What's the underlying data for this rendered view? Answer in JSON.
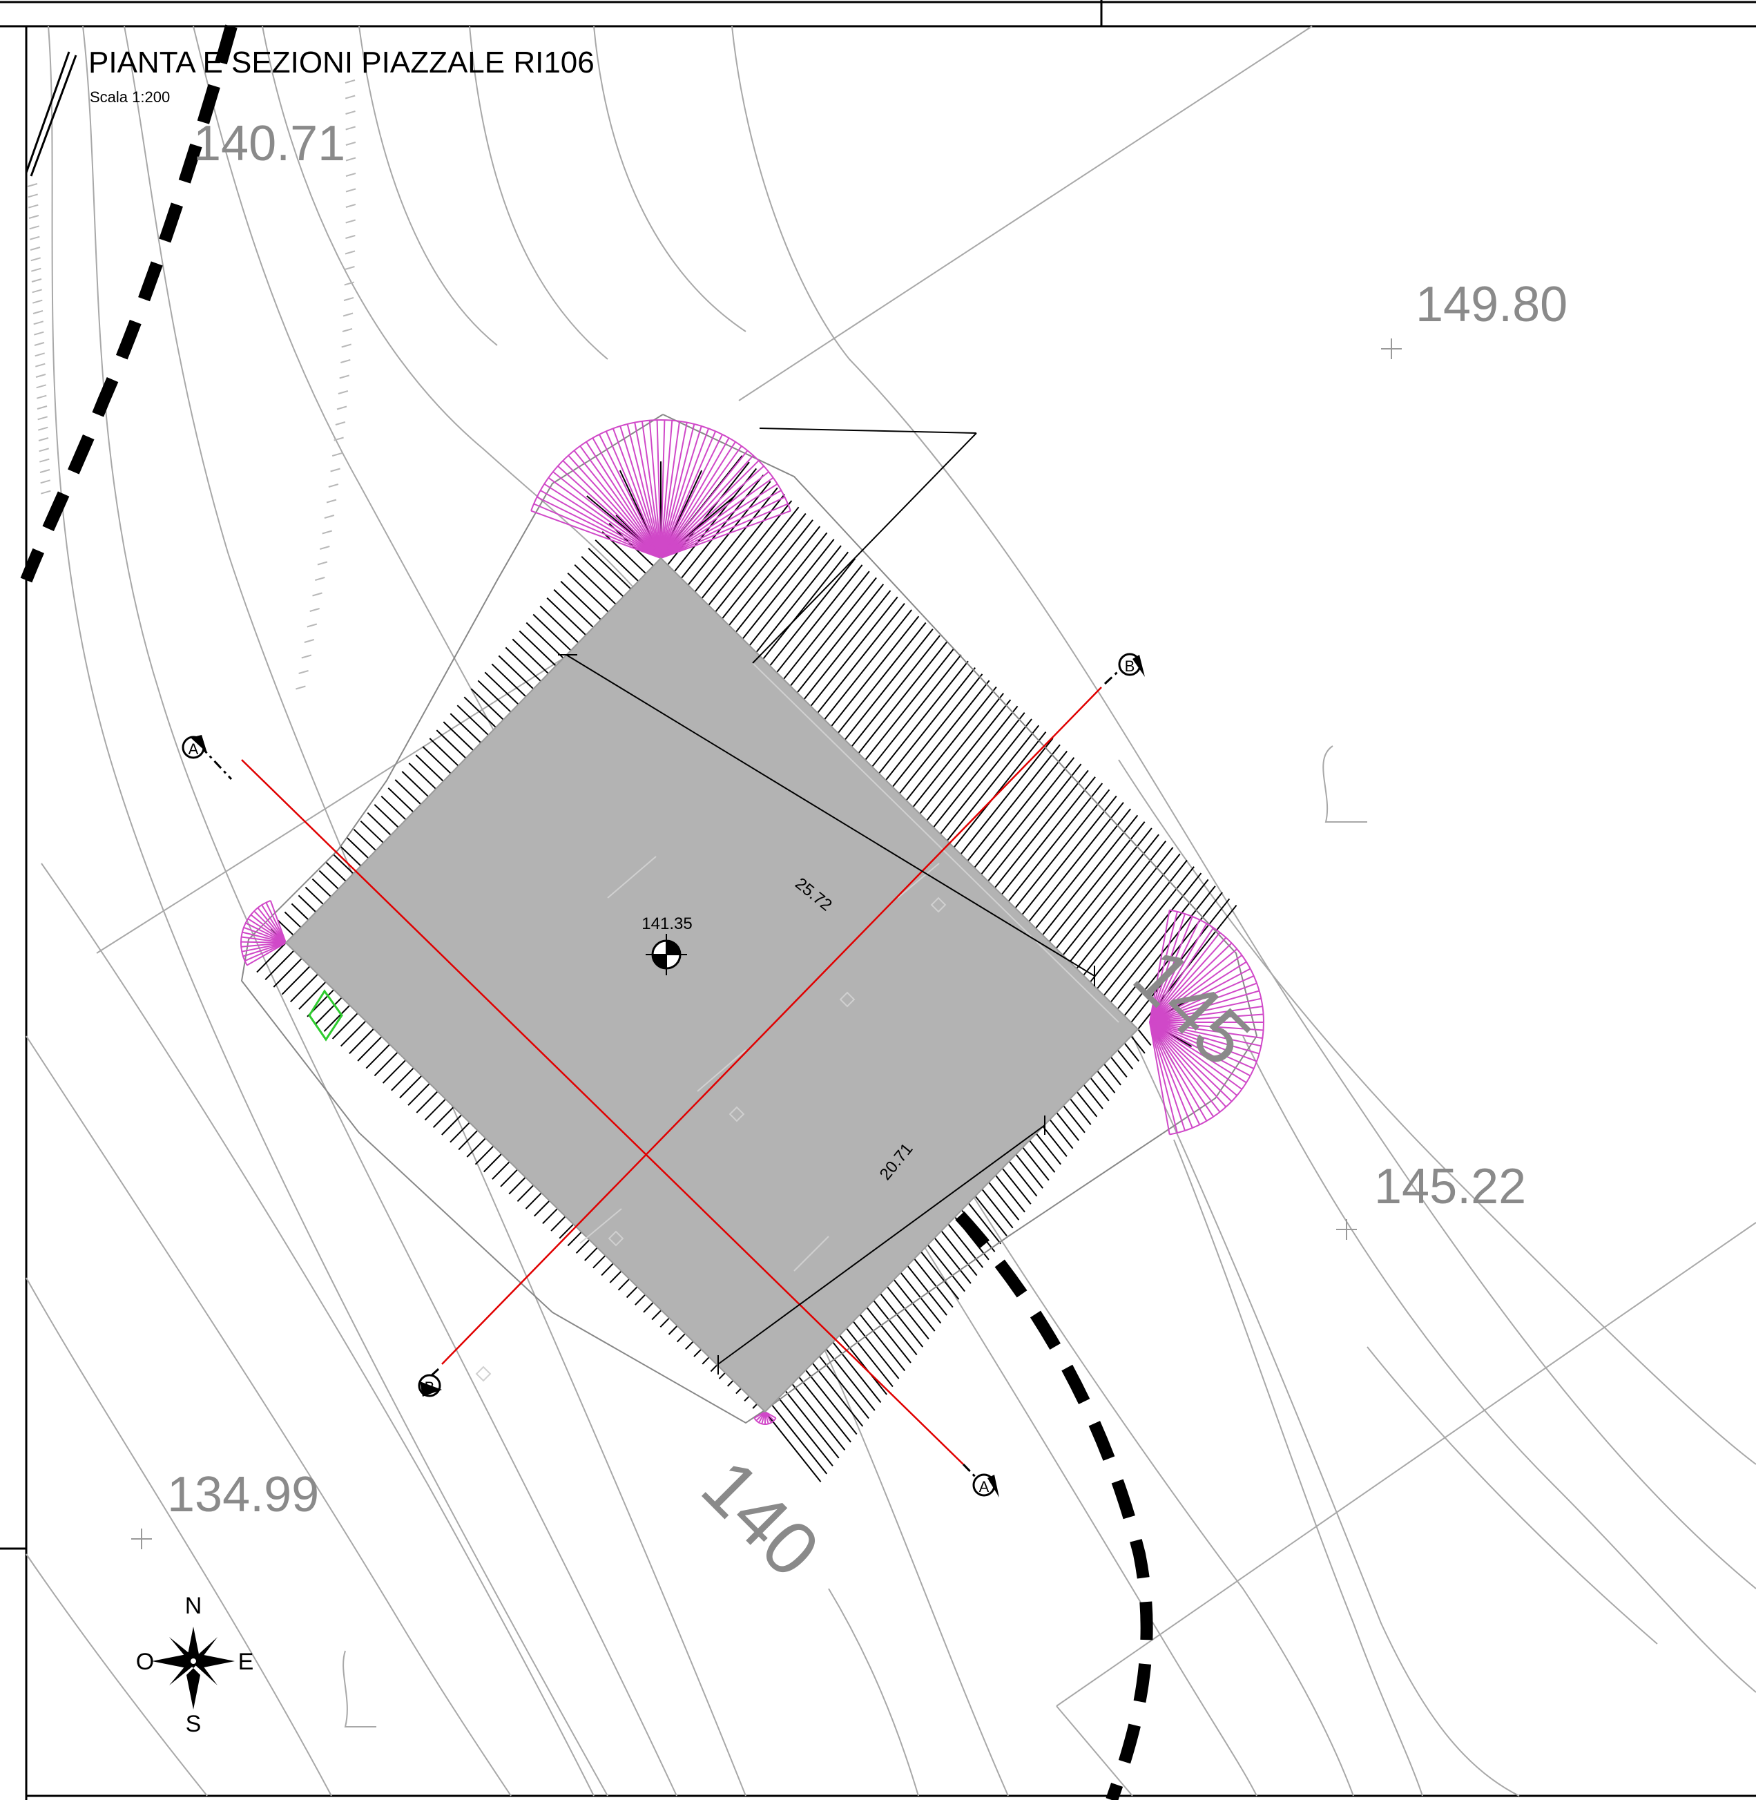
{
  "title": "PIANTA E SEZIONI PIAZZALE RI106",
  "scale": "Scala 1:200",
  "spot_elevations": [
    "140.71",
    "149.80",
    "145.22",
    "134.99"
  ],
  "platform_elevation": "141.35",
  "dimensions": {
    "length": "25.72",
    "width": "20.71"
  },
  "contour_labels": [
    "140",
    "145"
  ],
  "section_markers": {
    "a": "A",
    "b": "B"
  },
  "compass": {
    "north": "N",
    "south": "S",
    "east": "E",
    "west": "O"
  },
  "colors": {
    "platform_fill": "#b3b3b3",
    "section_line": "#e00000",
    "slope_fan": "#d048c8",
    "contour": "#9a9a9a",
    "elevation_text": "#8a8a8a"
  }
}
